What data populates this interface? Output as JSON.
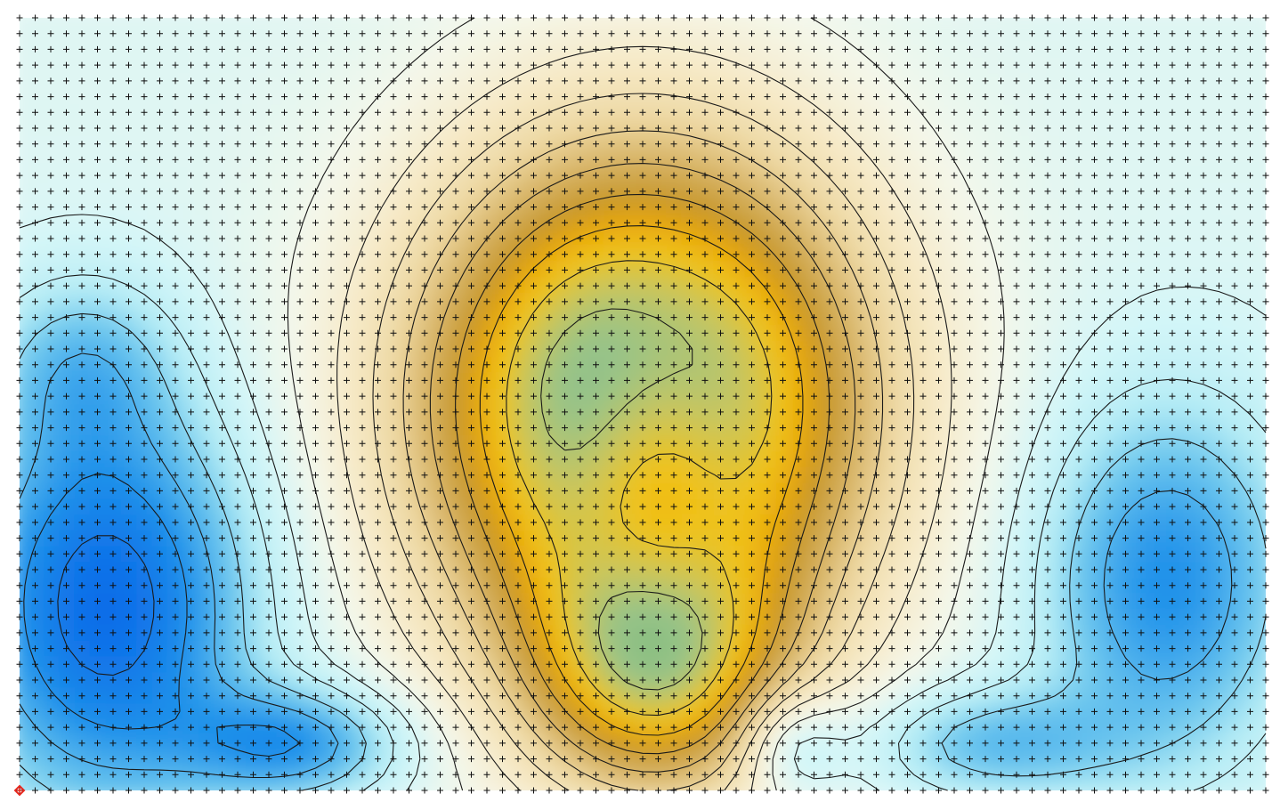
{
  "chart_data": {
    "type": "heatmap",
    "subtype": "filled-contour",
    "title": "",
    "xlabel": "",
    "ylabel": "",
    "grid": true,
    "grid_markers": "plus",
    "legend": "none",
    "grid_shape": {
      "columns": 81,
      "rows": 50
    },
    "field_model": {
      "base": 0.15,
      "components": [
        {
          "kind": "gaussian",
          "cx": 0.5,
          "cy": 0.5,
          "sx": 0.13,
          "sy": 0.24,
          "amp": 1.35
        },
        {
          "kind": "gaussian",
          "cx": 0.51,
          "cy": 0.84,
          "sx": 0.07,
          "sy": 0.12,
          "amp": 0.8
        },
        {
          "kind": "gaussian",
          "cx": 0.51,
          "cy": 0.62,
          "sx": 0.05,
          "sy": 0.16,
          "amp": -0.45
        },
        {
          "kind": "gaussian",
          "cx": 0.07,
          "cy": 0.76,
          "sx": 0.08,
          "sy": 0.18,
          "amp": -0.85
        },
        {
          "kind": "gaussian",
          "cx": 0.92,
          "cy": 0.73,
          "sx": 0.07,
          "sy": 0.16,
          "amp": -0.6
        },
        {
          "kind": "gaussian",
          "cx": 0.22,
          "cy": 0.94,
          "sx": 0.06,
          "sy": 0.05,
          "amp": -0.55
        },
        {
          "kind": "gaussian",
          "cx": 0.78,
          "cy": 0.94,
          "sx": 0.07,
          "sy": 0.05,
          "amp": -0.4
        },
        {
          "kind": "gaussian",
          "cx": 0.62,
          "cy": 0.94,
          "sx": 0.03,
          "sy": 0.05,
          "amp": -0.3
        },
        {
          "kind": "gaussian",
          "cx": 0.05,
          "cy": 0.45,
          "sx": 0.05,
          "sy": 0.08,
          "amp": -0.3
        }
      ],
      "low_tail_weight": 0.5
    },
    "contour_levels": [
      -0.6,
      -0.45,
      -0.3,
      -0.15,
      0.0,
      0.12,
      0.24,
      0.36,
      0.48,
      0.6,
      0.72,
      0.84,
      0.96,
      1.08,
      1.2,
      1.32,
      1.44,
      1.56
    ],
    "colormap": [
      {
        "v": -0.75,
        "color": "#0a66e8"
      },
      {
        "v": -0.45,
        "color": "#1e90ea"
      },
      {
        "v": -0.2,
        "color": "#6fc8ee"
      },
      {
        "v": -0.05,
        "color": "#b5ecf5"
      },
      {
        "v": 0.1,
        "color": "#d4f6f8"
      },
      {
        "v": 0.25,
        "color": "#f4f7ea"
      },
      {
        "v": 0.4,
        "color": "#f6e9c6"
      },
      {
        "v": 0.55,
        "color": "#eed9a4"
      },
      {
        "v": 0.7,
        "color": "#d8b568"
      },
      {
        "v": 0.85,
        "color": "#c7982d"
      },
      {
        "v": 0.95,
        "color": "#e7a70c"
      },
      {
        "v": 1.05,
        "color": "#f0c21a"
      },
      {
        "v": 1.15,
        "color": "#cbc65b"
      },
      {
        "v": 1.25,
        "color": "#97c389"
      },
      {
        "v": 1.4,
        "color": "#6cb56c"
      }
    ],
    "origin_marker": {
      "shape": "diamond",
      "color": "#e8281e"
    }
  }
}
